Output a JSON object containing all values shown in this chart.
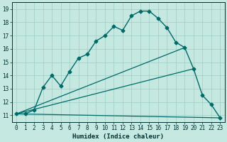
{
  "xlabel": "Humidex (Indice chaleur)",
  "xlim": [
    -0.5,
    23.5
  ],
  "ylim": [
    10.5,
    19.5
  ],
  "xticks": [
    0,
    1,
    2,
    3,
    4,
    5,
    6,
    7,
    8,
    9,
    10,
    11,
    12,
    13,
    14,
    15,
    16,
    17,
    18,
    19,
    20,
    21,
    22,
    23
  ],
  "yticks": [
    11,
    12,
    13,
    14,
    15,
    16,
    17,
    18,
    19
  ],
  "bg_color": "#c5e8e0",
  "grid_color": "#9ecec5",
  "line_color": "#006a6a",
  "main_series_x": [
    0,
    1,
    2,
    3,
    4,
    5,
    6,
    7,
    8,
    9,
    10,
    11,
    12,
    13,
    14,
    15,
    16,
    17,
    18,
    19,
    20,
    21,
    22,
    23
  ],
  "main_series_y": [
    11.1,
    11.1,
    11.4,
    13.1,
    14.0,
    13.2,
    14.3,
    15.3,
    15.6,
    16.6,
    17.0,
    17.7,
    17.4,
    18.5,
    18.85,
    18.85,
    18.3,
    17.6,
    16.5,
    16.1,
    14.5,
    12.5,
    11.8,
    10.8
  ],
  "straight_lines": [
    {
      "x": [
        0,
        19
      ],
      "y": [
        11.1,
        16.1
      ]
    },
    {
      "x": [
        0,
        20
      ],
      "y": [
        11.1,
        14.5
      ]
    },
    {
      "x": [
        0,
        23
      ],
      "y": [
        11.1,
        10.8
      ]
    }
  ],
  "font_color": "#003030",
  "tick_fontsize": 5.5,
  "label_fontsize": 6.5
}
